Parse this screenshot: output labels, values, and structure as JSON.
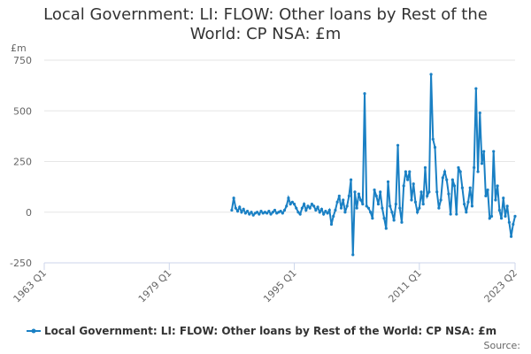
{
  "chart_data": {
    "type": "line",
    "title": "Local Government: LI: FLOW: Other loans by Rest of the World: CP NSA: £m",
    "y_label": "£m",
    "source": "Source:",
    "xlim": [
      1963,
      2023.25
    ],
    "xticks": [
      {
        "value": 1963,
        "label": "1963 Q1"
      },
      {
        "value": 1979,
        "label": "1979 Q1"
      },
      {
        "value": 1995,
        "label": "1995 Q1"
      },
      {
        "value": 2011,
        "label": "2011 Q1"
      },
      {
        "value": 2023.25,
        "label": "2023 Q2"
      }
    ],
    "ylim": [
      -250,
      750
    ],
    "yticks": [
      -250,
      0,
      250,
      500,
      750
    ],
    "grid": true,
    "legend": "bottom",
    "x": [
      1987,
      1987.25,
      1987.5,
      1987.75,
      1988,
      1988.25,
      1988.5,
      1988.75,
      1989,
      1989.25,
      1989.5,
      1989.75,
      1990,
      1990.25,
      1990.5,
      1990.75,
      1991,
      1991.25,
      1991.5,
      1991.75,
      1992,
      1992.25,
      1992.5,
      1992.75,
      1993,
      1993.25,
      1993.5,
      1993.75,
      1994,
      1994.25,
      1994.5,
      1994.75,
      1995,
      1995.25,
      1995.5,
      1995.75,
      1996,
      1996.25,
      1996.5,
      1996.75,
      1997,
      1997.25,
      1997.5,
      1997.75,
      1998,
      1998.25,
      1998.5,
      1998.75,
      1999,
      1999.25,
      1999.5,
      1999.75,
      2000,
      2000.25,
      2000.5,
      2000.75,
      2001,
      2001.25,
      2001.5,
      2001.75,
      2002,
      2002.25,
      2002.5,
      2002.75,
      2003,
      2003.25,
      2003.5,
      2003.75,
      2004,
      2004.25,
      2004.5,
      2004.75,
      2005,
      2005.25,
      2005.5,
      2005.75,
      2006,
      2006.25,
      2006.5,
      2006.75,
      2007,
      2007.25,
      2007.5,
      2007.75,
      2008,
      2008.25,
      2008.5,
      2008.75,
      2009,
      2009.25,
      2009.5,
      2009.75,
      2010,
      2010.25,
      2010.5,
      2010.75,
      2011,
      2011.25,
      2011.5,
      2011.75,
      2012,
      2012.25,
      2012.5,
      2012.75,
      2013,
      2013.25,
      2013.5,
      2013.75,
      2014,
      2014.25,
      2014.5,
      2014.75,
      2015,
      2015.25,
      2015.5,
      2015.75,
      2016,
      2016.25,
      2016.5,
      2016.75,
      2017,
      2017.25,
      2017.5,
      2017.75,
      2018,
      2018.25,
      2018.5,
      2018.75,
      2019,
      2019.25,
      2019.5,
      2019.75,
      2020,
      2020.25,
      2020.5,
      2020.75,
      2021,
      2021.25,
      2021.5,
      2021.75,
      2022,
      2022.25,
      2022.5,
      2022.75,
      2023,
      2023.25
    ],
    "series": [
      {
        "name": "Local Government: LI: FLOW: Other loans by Rest of the World: CP NSA: £m",
        "color": "#1a80c4",
        "values": [
          10,
          70,
          20,
          5,
          25,
          0,
          15,
          -5,
          5,
          -10,
          0,
          -15,
          -5,
          0,
          -10,
          5,
          -5,
          0,
          -5,
          5,
          -10,
          0,
          10,
          -5,
          0,
          5,
          -5,
          10,
          30,
          70,
          40,
          50,
          40,
          20,
          0,
          -10,
          20,
          40,
          10,
          30,
          20,
          40,
          30,
          10,
          25,
          0,
          15,
          -10,
          5,
          -5,
          10,
          -60,
          -20,
          10,
          50,
          80,
          20,
          60,
          0,
          30,
          80,
          160,
          -210,
          100,
          20,
          90,
          60,
          40,
          585,
          30,
          20,
          0,
          -30,
          110,
          80,
          40,
          100,
          20,
          -30,
          -80,
          150,
          30,
          0,
          -40,
          40,
          330,
          20,
          -50,
          130,
          200,
          160,
          200,
          60,
          140,
          50,
          0,
          20,
          100,
          40,
          220,
          80,
          100,
          680,
          360,
          320,
          100,
          20,
          60,
          170,
          200,
          160,
          90,
          -10,
          160,
          130,
          -10,
          220,
          200,
          120,
          40,
          0,
          50,
          120,
          30,
          220,
          610,
          200,
          490,
          240,
          300,
          80,
          110,
          -30,
          -20,
          300,
          60,
          130,
          10,
          -30,
          70,
          -20,
          30,
          -50,
          -120,
          -60,
          -20
        ]
      }
    ]
  }
}
